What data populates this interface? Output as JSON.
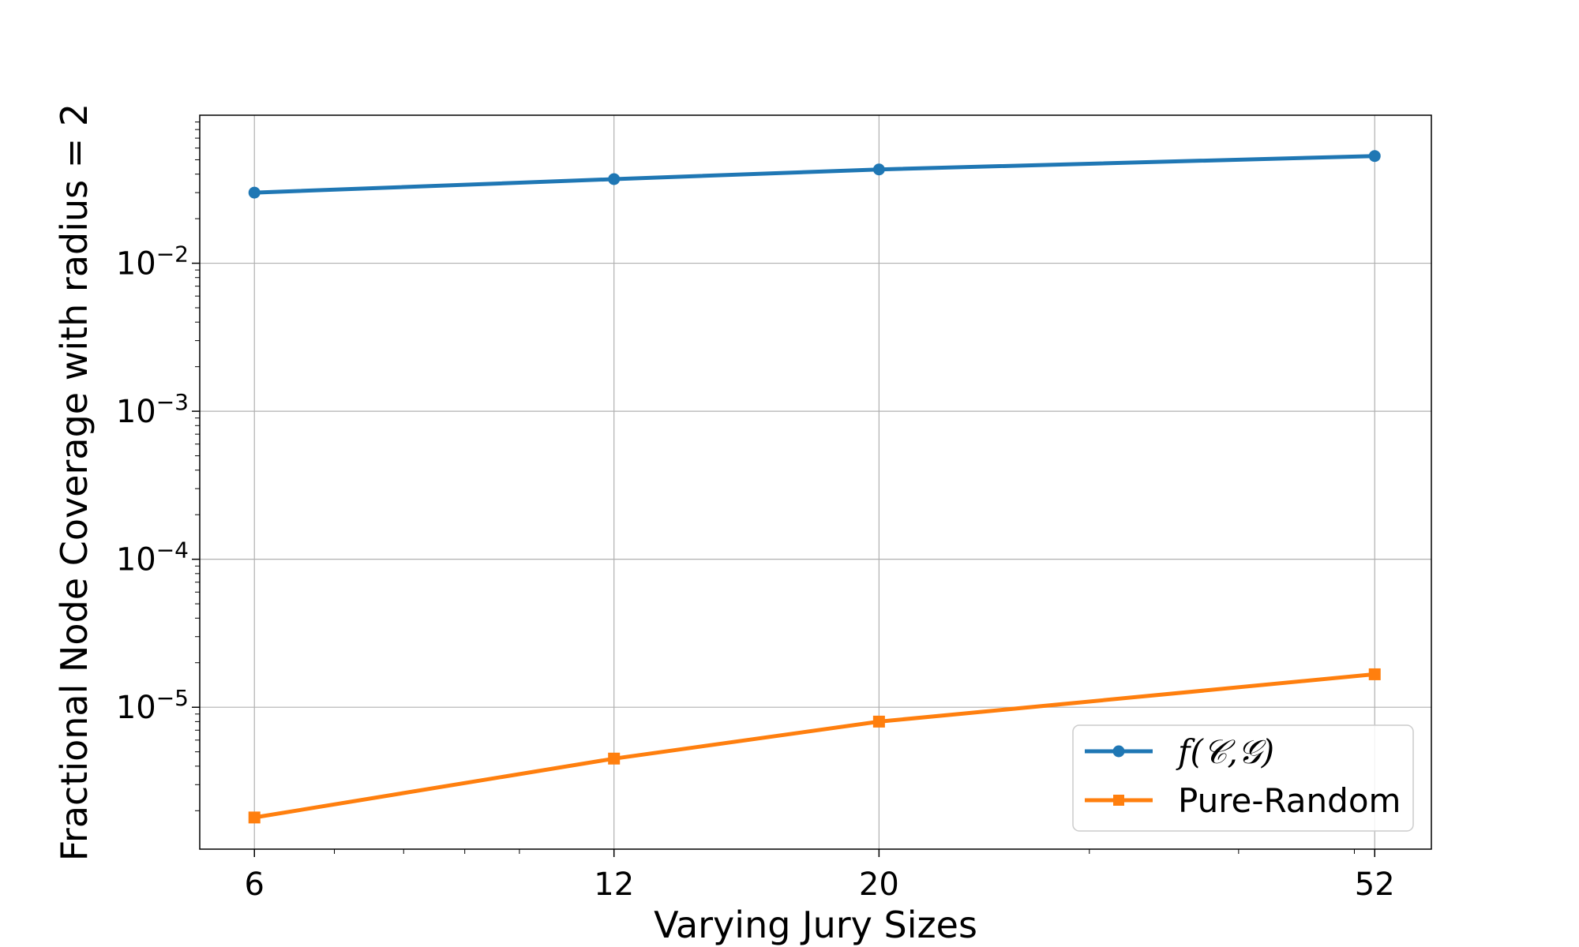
{
  "chart_data": {
    "type": "line",
    "xlabel": "Varying Jury Sizes",
    "ylabel": "Fractional Node Coverage with radius = 2",
    "x_scale": "log",
    "y_scale": "log",
    "x": [
      6,
      12,
      20,
      52
    ],
    "x_tick_labels": [
      "6",
      "12",
      "20",
      "52"
    ],
    "xlim": [
      5.4,
      58
    ],
    "ylim": [
      1.1e-06,
      0.1
    ],
    "y_ticks": [
      {
        "value": 0.01,
        "base": "10",
        "exp": "−2"
      },
      {
        "value": 0.001,
        "base": "10",
        "exp": "−3"
      },
      {
        "value": 0.0001,
        "base": "10",
        "exp": "−4"
      },
      {
        "value": 1e-05,
        "base": "10",
        "exp": "−5"
      }
    ],
    "grid": true,
    "legend_position": "lower-right",
    "series": [
      {
        "name": "f(𝒞,𝒢)",
        "values": [
          0.03,
          0.037,
          0.043,
          0.053
        ],
        "color": "#1f77b4",
        "marker": "circle"
      },
      {
        "name": "Pure-Random",
        "values": [
          1.8e-06,
          4.5e-06,
          8e-06,
          1.67e-05
        ],
        "color": "#ff7f0e",
        "marker": "square"
      }
    ]
  }
}
